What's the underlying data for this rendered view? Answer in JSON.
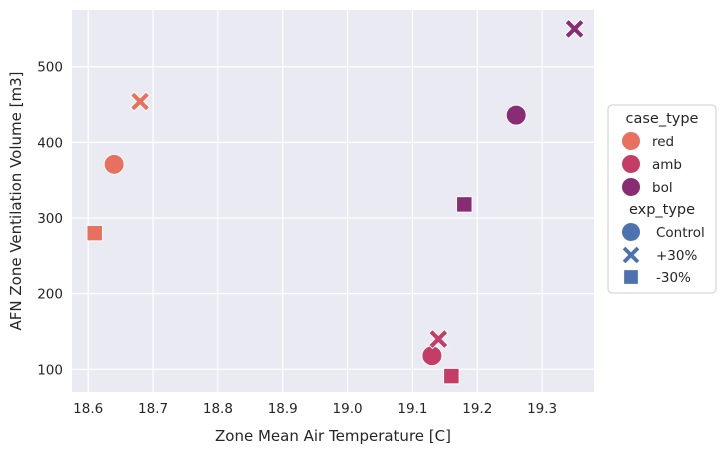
{
  "chart_data": {
    "type": "scatter",
    "xlabel": "Zone Mean Air Temperature [C]",
    "ylabel": "AFN Zone Ventilation Volume [m3]",
    "xlim": [
      18.575,
      19.38
    ],
    "ylim": [
      70,
      575
    ],
    "xticks": [
      18.6,
      18.7,
      18.8,
      18.9,
      19.0,
      19.1,
      19.2,
      19.3
    ],
    "xtick_labels": [
      "18.6",
      "18.7",
      "18.8",
      "18.9",
      "19.0",
      "19.1",
      "19.2",
      "19.3"
    ],
    "yticks": [
      100,
      200,
      300,
      400,
      500
    ],
    "ytick_labels": [
      "100",
      "200",
      "300",
      "400",
      "500"
    ],
    "grid": true,
    "legend_placement": "right",
    "colors": {
      "red": "#E8705F",
      "amb": "#C53D66",
      "bol": "#8A2C73",
      "exp_marker": "#4C72B0",
      "panel_bg": "#EAEAF2",
      "grid": "#FFFFFF"
    },
    "legend": {
      "hue_title": "case_type",
      "hue_entries": [
        {
          "label": "red",
          "color": "#E8705F"
        },
        {
          "label": "amb",
          "color": "#C53D66"
        },
        {
          "label": "bol",
          "color": "#8A2C73"
        }
      ],
      "style_title": "exp_type",
      "style_entries": [
        {
          "label": "Control",
          "marker": "circle"
        },
        {
          "label": "+30%",
          "marker": "x"
        },
        {
          "label": "-30%",
          "marker": "square"
        }
      ]
    },
    "series": [
      {
        "case_type": "red",
        "exp_type": "Control",
        "x": 18.64,
        "y": 371
      },
      {
        "case_type": "red",
        "exp_type": "+30%",
        "x": 18.68,
        "y": 454
      },
      {
        "case_type": "red",
        "exp_type": "-30%",
        "x": 18.61,
        "y": 280
      },
      {
        "case_type": "amb",
        "exp_type": "Control",
        "x": 19.13,
        "y": 118
      },
      {
        "case_type": "amb",
        "exp_type": "+30%",
        "x": 19.14,
        "y": 140
      },
      {
        "case_type": "amb",
        "exp_type": "-30%",
        "x": 19.16,
        "y": 91
      },
      {
        "case_type": "bol",
        "exp_type": "Control",
        "x": 19.26,
        "y": 436
      },
      {
        "case_type": "bol",
        "exp_type": "+30%",
        "x": 19.35,
        "y": 550
      },
      {
        "case_type": "bol",
        "exp_type": "-30%",
        "x": 19.18,
        "y": 318
      }
    ]
  }
}
